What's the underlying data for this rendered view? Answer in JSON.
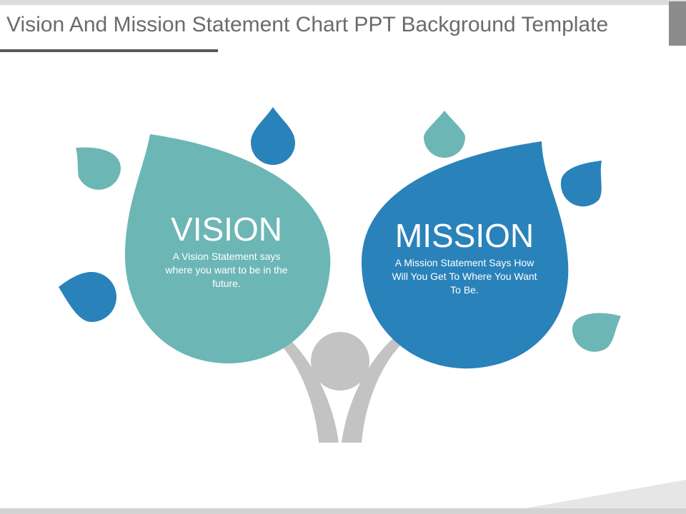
{
  "slide": {
    "title": "Vision And Mission Statement Chart PPT Background Template"
  },
  "vision": {
    "heading": "VISION",
    "text": "A Vision Statement says where you want to be in the future."
  },
  "mission": {
    "heading": "MISSION",
    "text": "A Mission Statement Says How Will You Get To Where You Want To Be."
  },
  "colors": {
    "teal": "#6db6b6",
    "blue": "#2a82ba",
    "figure_gray": "#c3c3c3",
    "title_text": "#6b6b6b"
  },
  "icons": [
    "person-figure-icon",
    "water-drop-icon",
    "leaf-icon"
  ]
}
